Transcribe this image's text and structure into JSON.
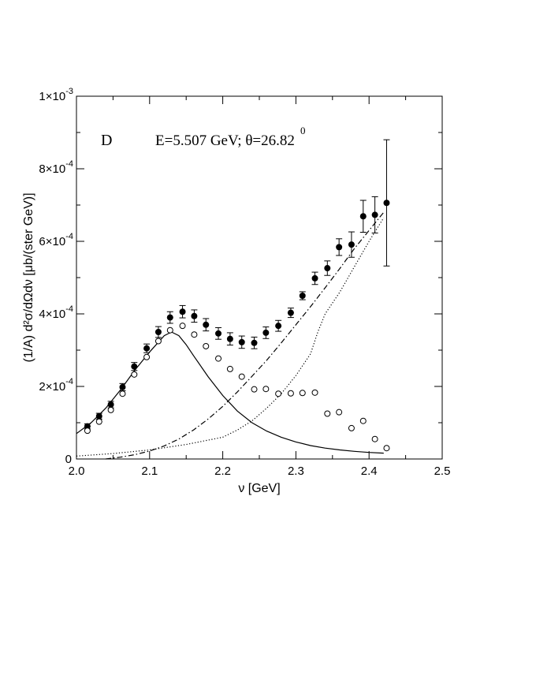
{
  "chart_data": {
    "type": "scatter",
    "panel_label": "D",
    "title": "E=5.507 GeV; θ=26.82",
    "title_superscript": "0",
    "xlabel": "ν [GeV]",
    "ylabel": "(1/A) d²σ/dΩdν [μb/(ster GeV)]",
    "xlim": [
      2.0,
      2.5
    ],
    "ylim": [
      0,
      0.001
    ],
    "x_ticks": [
      {
        "value": 2.0,
        "label": "2.0"
      },
      {
        "value": 2.1,
        "label": "2.1"
      },
      {
        "value": 2.2,
        "label": "2.2"
      },
      {
        "value": 2.3,
        "label": "2.3"
      },
      {
        "value": 2.4,
        "label": "2.4"
      },
      {
        "value": 2.5,
        "label": "2.5"
      }
    ],
    "y_ticks": [
      {
        "value": 0,
        "mant": "0",
        "exp": ""
      },
      {
        "value": 0.0002,
        "mant": "2×10",
        "exp": "-4"
      },
      {
        "value": 0.0004,
        "mant": "4×10",
        "exp": "-4"
      },
      {
        "value": 0.0006,
        "mant": "6×10",
        "exp": "-4"
      },
      {
        "value": 0.0008,
        "mant": "8×10",
        "exp": "-4"
      },
      {
        "value": 0.001,
        "mant": "1×10",
        "exp": "-3"
      }
    ],
    "series": [
      {
        "name": "data",
        "style": "filled-circle-errorbar",
        "x": [
          2.015,
          2.031,
          2.047,
          2.063,
          2.079,
          2.096,
          2.112,
          2.128,
          2.145,
          2.161,
          2.177,
          2.194,
          2.21,
          2.226,
          2.243,
          2.259,
          2.276,
          2.293,
          2.309,
          2.326,
          2.343,
          2.359,
          2.376,
          2.392,
          2.408,
          2.424
        ],
        "y": [
          9e-05,
          0.000118,
          0.00015,
          0.000198,
          0.000255,
          0.000305,
          0.00035,
          0.00039,
          0.000406,
          0.000394,
          0.00037,
          0.000346,
          0.000331,
          0.000322,
          0.00032,
          0.000348,
          0.000367,
          0.000403,
          0.00045,
          0.000498,
          0.000526,
          0.000584,
          0.000591,
          0.000669,
          0.000673,
          0.000706
        ],
        "err": [
          7e-06,
          8e-06,
          9e-06,
          1e-05,
          1.1e-05,
          1.2e-05,
          1.5e-05,
          1.6e-05,
          1.7e-05,
          1.7e-05,
          1.7e-05,
          1.6e-05,
          1.7e-05,
          1.7e-05,
          1.6e-05,
          1.6e-05,
          1.5e-05,
          1.3e-05,
          1.1e-05,
          1.7e-05,
          2e-05,
          2.3e-05,
          3.5e-05,
          4.4e-05,
          5e-05,
          0.000174
        ]
      },
      {
        "name": "open-circles",
        "style": "open-circle",
        "x": [
          2.015,
          2.031,
          2.047,
          2.063,
          2.079,
          2.096,
          2.112,
          2.128,
          2.145,
          2.161,
          2.177,
          2.194,
          2.21,
          2.226,
          2.243,
          2.259,
          2.276,
          2.293,
          2.309,
          2.326,
          2.343,
          2.359,
          2.376,
          2.392,
          2.408,
          2.424
        ],
        "y": [
          7.8e-05,
          0.000103,
          0.000135,
          0.00018,
          0.000233,
          0.000281,
          0.000325,
          0.000355,
          0.000367,
          0.000343,
          0.000311,
          0.000277,
          0.000248,
          0.000227,
          0.000192,
          0.000193,
          0.00018,
          0.000181,
          0.000182,
          0.000183,
          0.000125,
          0.000129,
          8.5e-05,
          0.000105,
          5.5e-05,
          3e-05
        ]
      },
      {
        "name": "solid",
        "style": "solid",
        "x": [
          2.0,
          2.02,
          2.04,
          2.06,
          2.08,
          2.1,
          2.12,
          2.13,
          2.14,
          2.15,
          2.16,
          2.18,
          2.2,
          2.22,
          2.24,
          2.26,
          2.28,
          2.3,
          2.32,
          2.34,
          2.36,
          2.38,
          2.4,
          2.42
        ],
        "y": [
          7e-05,
          0.0001,
          0.00014,
          0.00019,
          0.000245,
          0.000295,
          0.00034,
          0.00035,
          0.00034,
          0.000315,
          0.000285,
          0.000227,
          0.000175,
          0.000132,
          0.0001,
          7.7e-05,
          6e-05,
          4.7e-05,
          3.7e-05,
          3e-05,
          2.5e-05,
          2.1e-05,
          1.8e-05,
          1.6e-05
        ]
      },
      {
        "name": "dash-dot",
        "style": "dashdot",
        "x": [
          2.04,
          2.06,
          2.08,
          2.1,
          2.12,
          2.14,
          2.16,
          2.18,
          2.2,
          2.22,
          2.24,
          2.26,
          2.28,
          2.3,
          2.32,
          2.34,
          2.36,
          2.38,
          2.4,
          2.42
        ],
        "y": [
          0.0,
          5e-06,
          1.2e-05,
          2.2e-05,
          3.6e-05,
          5.5e-05,
          8e-05,
          0.00011,
          0.000145,
          0.000185,
          0.000228,
          0.000272,
          0.00032,
          0.00037,
          0.00042,
          0.000472,
          0.000525,
          0.00058,
          0.00063,
          0.00068
        ]
      },
      {
        "name": "dotted",
        "style": "dotted",
        "x": [
          2.0,
          2.05,
          2.1,
          2.15,
          2.2,
          2.22,
          2.24,
          2.26,
          2.28,
          2.3,
          2.32,
          2.33,
          2.34,
          2.36,
          2.38,
          2.4,
          2.42
        ],
        "y": [
          8e-06,
          1.5e-05,
          2.5e-05,
          4e-05,
          6e-05,
          8e-05,
          0.000105,
          0.00014,
          0.00018,
          0.00023,
          0.00029,
          0.00035,
          0.0004,
          0.00046,
          0.00053,
          0.0006,
          0.000665
        ]
      }
    ]
  }
}
